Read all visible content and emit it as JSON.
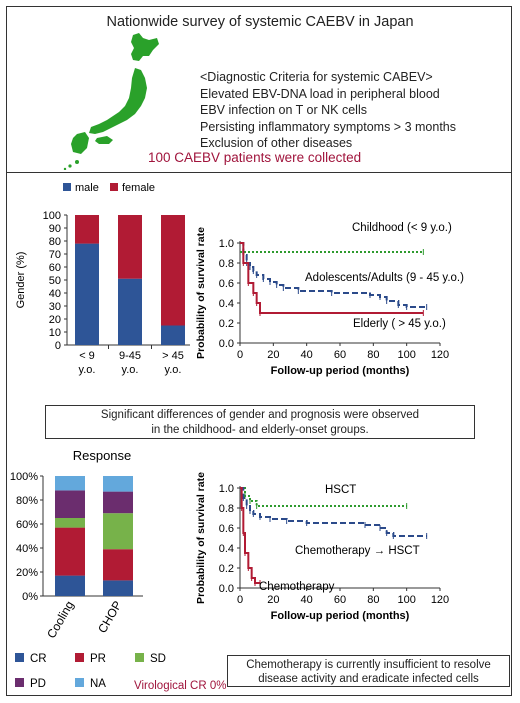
{
  "title": "Nationwide survey of systemic CAEBV in Japan",
  "criteria": {
    "heading": "<Diagnostic Criteria for systemic CABEV>",
    "items": [
      "Elevated EBV-DNA load in peripheral blood",
      "EBV infection on T or NK cells",
      "Persisting inflammatory symptoms > 3 months",
      "Exclusion of other diseases"
    ]
  },
  "collected": "100 CAEBV patients were collected",
  "colors": {
    "male": "#2e5597",
    "female": "#b11b34",
    "map": "#2aa12a",
    "green": "#2e9a2e",
    "navy": "#2b4a8a",
    "cr": "#2e5597",
    "pr": "#b11b34",
    "sd": "#77b24a",
    "pd": "#6b2d6e",
    "na": "#63a8dc"
  },
  "icons": {
    "map": "japan-map"
  },
  "chart_data": [
    {
      "type": "bar",
      "stacked": true,
      "ylabel": "Gender (%)",
      "ylim": [
        0,
        100
      ],
      "yticks": [
        "0",
        "10",
        "20",
        "30",
        "40",
        "50",
        "60",
        "70",
        "80",
        "90",
        "100"
      ],
      "categories": [
        "< 9 y.o.",
        "9-45 y.o.",
        "> 45 y.o."
      ],
      "category_lines": [
        [
          "< 9",
          "y.o."
        ],
        [
          "9-45",
          "y.o."
        ],
        [
          "> 45",
          "y.o."
        ]
      ],
      "series": [
        {
          "name": "male",
          "values": [
            78,
            51,
            15
          ]
        },
        {
          "name": "female",
          "values": [
            22,
            49,
            85
          ]
        }
      ],
      "legend": "top"
    },
    {
      "type": "line",
      "xlabel": "Follow-up period (months)",
      "ylabel": "Probability of survival rate",
      "xlim": [
        0,
        120
      ],
      "ylim": [
        0,
        1.0
      ],
      "xticks": [
        "0",
        "20",
        "40",
        "60",
        "80",
        "100",
        "120"
      ],
      "yticks": [
        "0.0",
        "0.2",
        "0.4",
        "0.6",
        "0.8",
        "1.0"
      ],
      "series": [
        {
          "name": "Childhood (< 9 y.o.)",
          "x": [
            0,
            110
          ],
          "y": [
            0.91,
            0.91
          ]
        },
        {
          "name": "Adolescents/Adults (9 - 45 y.o.)",
          "x": [
            0,
            2,
            4,
            6,
            8,
            10,
            14,
            18,
            22,
            26,
            35,
            55,
            78,
            84,
            88,
            95,
            100,
            112
          ],
          "y": [
            1.0,
            0.88,
            0.8,
            0.76,
            0.72,
            0.68,
            0.64,
            0.61,
            0.58,
            0.55,
            0.52,
            0.5,
            0.48,
            0.46,
            0.42,
            0.38,
            0.36,
            0.36
          ]
        },
        {
          "name": "Elderly ( > 45 y.o.)",
          "x": [
            0,
            2,
            5,
            8,
            10,
            12,
            110
          ],
          "y": [
            1.0,
            0.8,
            0.6,
            0.5,
            0.4,
            0.3,
            0.3
          ]
        }
      ]
    },
    {
      "type": "bar",
      "stacked": true,
      "title": "Response",
      "ylim": [
        0,
        100
      ],
      "yticks": [
        "0%",
        "20%",
        "40%",
        "60%",
        "80%",
        "100%"
      ],
      "categories": [
        "Cooling",
        "CHOP"
      ],
      "series": [
        {
          "name": "CR",
          "values": [
            17,
            13
          ]
        },
        {
          "name": "PR",
          "values": [
            40,
            26
          ]
        },
        {
          "name": "SD",
          "values": [
            8,
            30
          ]
        },
        {
          "name": "PD",
          "values": [
            23,
            18
          ]
        },
        {
          "name": "NA",
          "values": [
            12,
            13
          ]
        }
      ],
      "legend": "bottom"
    },
    {
      "type": "line",
      "xlabel": "Follow-up period (months)",
      "ylabel": "Probability of survival rate",
      "xlim": [
        0,
        120
      ],
      "ylim": [
        0,
        1.0
      ],
      "xticks": [
        "0",
        "20",
        "40",
        "60",
        "80",
        "100",
        "120"
      ],
      "yticks": [
        "0.0",
        "0.2",
        "0.4",
        "0.6",
        "0.8",
        "1.0"
      ],
      "series": [
        {
          "name": "HSCT",
          "x": [
            0,
            3,
            6,
            10,
            100
          ],
          "y": [
            1.0,
            0.92,
            0.87,
            0.82,
            0.82
          ]
        },
        {
          "name": "Chemotherapy → HSCT",
          "x": [
            0,
            2,
            4,
            6,
            8,
            12,
            18,
            28,
            40,
            75,
            84,
            88,
            92,
            112
          ],
          "y": [
            1.0,
            0.9,
            0.82,
            0.77,
            0.74,
            0.71,
            0.69,
            0.67,
            0.65,
            0.63,
            0.6,
            0.55,
            0.52,
            0.52
          ]
        },
        {
          "name": "Chemotherapy",
          "x": [
            0,
            1,
            2,
            3,
            5,
            7,
            9,
            12
          ],
          "y": [
            1.0,
            0.8,
            0.55,
            0.35,
            0.2,
            0.1,
            0.05,
            0.05
          ]
        }
      ]
    }
  ],
  "note1": [
    "Significant differences  of gender and prognosis were observed",
    "in the childhood- and elderly-onset groups."
  ],
  "note2": [
    "Chemotherapy is currently insufficient to resolve",
    "disease activity and eradicate infected cells"
  ],
  "virological": "Virological CR 0%"
}
